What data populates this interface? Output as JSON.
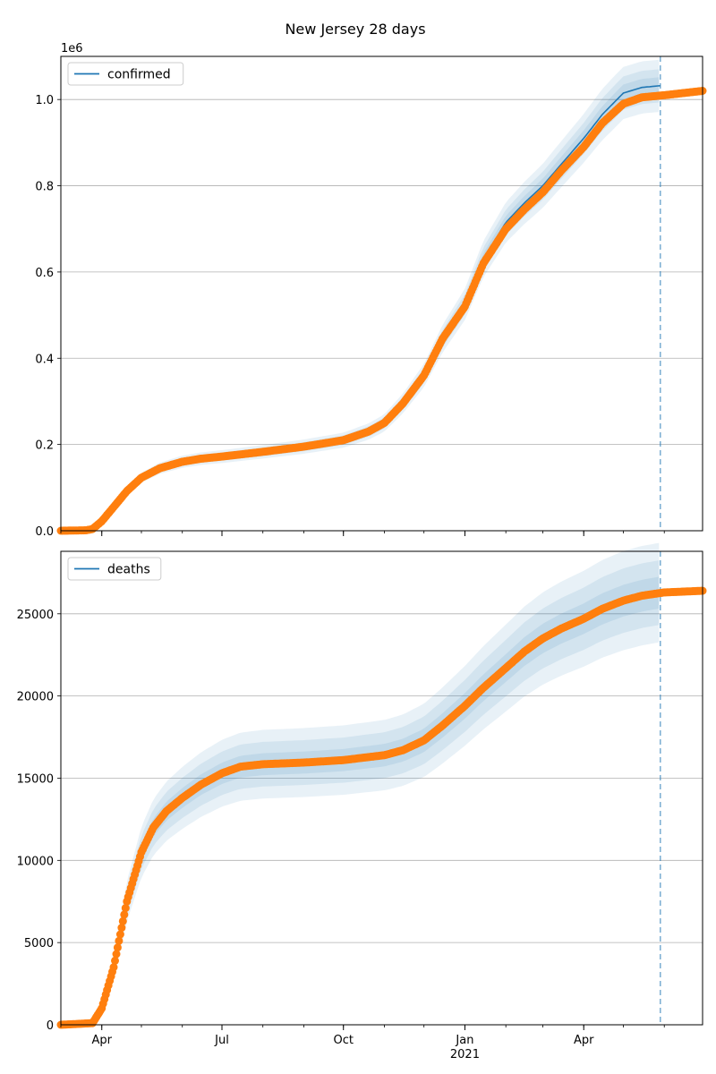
{
  "title": "New Jersey 28 days",
  "colors": {
    "model_line": "#1f77b4",
    "band": "#1f77b4",
    "observed": "#ff7f0e",
    "grid": "#b0b0b0",
    "divider": "#1f77b4"
  },
  "x_axis": {
    "start": "2020-03-01",
    "end": "2021-06-30",
    "forecast_start": "2021-05-29",
    "major_ticks": [
      {
        "date": "2020-04-01",
        "label": "Apr"
      },
      {
        "date": "2020-07-01",
        "label": "Jul"
      },
      {
        "date": "2020-10-01",
        "label": "Oct"
      },
      {
        "date": "2021-01-01",
        "label": "Jan"
      },
      {
        "date": "2021-04-01",
        "label": "Apr"
      }
    ],
    "year_label": {
      "date": "2021-01-01",
      "label": "2021"
    }
  },
  "chart_data": [
    {
      "type": "line",
      "legend": "confirmed",
      "legend_placement": "top-left",
      "grid": "y",
      "ylim": [
        0,
        1100000
      ],
      "offset_label": "1e6",
      "y_ticks": [
        {
          "value": 0,
          "label": "0.0"
        },
        {
          "value": 200000,
          "label": "0.2"
        },
        {
          "value": 400000,
          "label": "0.4"
        },
        {
          "value": 600000,
          "label": "0.6"
        },
        {
          "value": 800000,
          "label": "0.8"
        },
        {
          "value": 1000000,
          "label": "1.0"
        }
      ],
      "observed": [
        [
          "2020-03-01",
          0
        ],
        [
          "2020-03-20",
          1000
        ],
        [
          "2020-03-25",
          4000
        ],
        [
          "2020-04-01",
          22000
        ],
        [
          "2020-04-10",
          55000
        ],
        [
          "2020-04-20",
          92000
        ],
        [
          "2020-05-01",
          123000
        ],
        [
          "2020-05-15",
          145000
        ],
        [
          "2020-06-01",
          160000
        ],
        [
          "2020-06-15",
          167000
        ],
        [
          "2020-07-01",
          172000
        ],
        [
          "2020-08-01",
          183000
        ],
        [
          "2020-09-01",
          195000
        ],
        [
          "2020-10-01",
          210000
        ],
        [
          "2020-10-20",
          230000
        ],
        [
          "2020-11-01",
          250000
        ],
        [
          "2020-11-15",
          295000
        ],
        [
          "2020-12-01",
          360000
        ],
        [
          "2020-12-15",
          445000
        ],
        [
          "2021-01-01",
          520000
        ],
        [
          "2021-01-15",
          620000
        ],
        [
          "2021-02-01",
          700000
        ],
        [
          "2021-02-15",
          745000
        ],
        [
          "2021-03-01",
          785000
        ],
        [
          "2021-03-15",
          835000
        ],
        [
          "2021-04-01",
          890000
        ],
        [
          "2021-04-15",
          945000
        ],
        [
          "2021-05-01",
          990000
        ],
        [
          "2021-05-15",
          1005000
        ],
        [
          "2021-06-01",
          1010000
        ],
        [
          "2021-06-30",
          1020000
        ]
      ],
      "model": [
        [
          "2020-03-01",
          0
        ],
        [
          "2020-03-20",
          1000
        ],
        [
          "2020-03-25",
          4000
        ],
        [
          "2020-04-01",
          22000
        ],
        [
          "2020-04-10",
          55000
        ],
        [
          "2020-04-20",
          92000
        ],
        [
          "2020-05-01",
          123000
        ],
        [
          "2020-05-15",
          145000
        ],
        [
          "2020-06-01",
          160000
        ],
        [
          "2020-06-15",
          167000
        ],
        [
          "2020-07-01",
          172000
        ],
        [
          "2020-08-01",
          183000
        ],
        [
          "2020-09-01",
          195000
        ],
        [
          "2020-10-01",
          210000
        ],
        [
          "2020-10-20",
          230000
        ],
        [
          "2020-11-01",
          250000
        ],
        [
          "2020-11-15",
          295000
        ],
        [
          "2020-12-01",
          360000
        ],
        [
          "2020-12-15",
          445000
        ],
        [
          "2021-01-01",
          525000
        ],
        [
          "2021-01-15",
          630000
        ],
        [
          "2021-02-01",
          715000
        ],
        [
          "2021-02-15",
          760000
        ],
        [
          "2021-03-01",
          800000
        ],
        [
          "2021-03-15",
          850000
        ],
        [
          "2021-04-01",
          910000
        ],
        [
          "2021-04-15",
          965000
        ],
        [
          "2021-05-01",
          1015000
        ],
        [
          "2021-05-15",
          1028000
        ],
        [
          "2021-05-29",
          1032000
        ]
      ]
    },
    {
      "type": "line",
      "legend": "deaths",
      "legend_placement": "top-left",
      "grid": "y",
      "ylim": [
        0,
        28800
      ],
      "y_ticks": [
        {
          "value": 0,
          "label": "0"
        },
        {
          "value": 5000,
          "label": "5000"
        },
        {
          "value": 10000,
          "label": "10000"
        },
        {
          "value": 15000,
          "label": "15000"
        },
        {
          "value": 20000,
          "label": "20000"
        },
        {
          "value": 25000,
          "label": "25000"
        }
      ],
      "observed": [
        [
          "2020-03-01",
          0
        ],
        [
          "2020-03-25",
          100
        ],
        [
          "2020-04-01",
          1000
        ],
        [
          "2020-04-10",
          3500
        ],
        [
          "2020-04-20",
          7500
        ],
        [
          "2020-05-01",
          10500
        ],
        [
          "2020-05-10",
          12000
        ],
        [
          "2020-05-20",
          13000
        ],
        [
          "2020-06-01",
          13800
        ],
        [
          "2020-06-15",
          14600
        ],
        [
          "2020-07-01",
          15300
        ],
        [
          "2020-07-15",
          15700
        ],
        [
          "2020-08-01",
          15850
        ],
        [
          "2020-09-01",
          15950
        ],
        [
          "2020-10-01",
          16100
        ],
        [
          "2020-11-01",
          16400
        ],
        [
          "2020-11-15",
          16700
        ],
        [
          "2020-12-01",
          17300
        ],
        [
          "2020-12-15",
          18200
        ],
        [
          "2021-01-01",
          19400
        ],
        [
          "2021-01-15",
          20500
        ],
        [
          "2021-02-01",
          21700
        ],
        [
          "2021-02-15",
          22700
        ],
        [
          "2021-03-01",
          23500
        ],
        [
          "2021-03-15",
          24100
        ],
        [
          "2021-04-01",
          24700
        ],
        [
          "2021-04-15",
          25300
        ],
        [
          "2021-05-01",
          25800
        ],
        [
          "2021-05-15",
          26100
        ],
        [
          "2021-06-01",
          26300
        ],
        [
          "2021-06-30",
          26400
        ]
      ],
      "model": [
        [
          "2020-03-01",
          0
        ],
        [
          "2020-03-25",
          100
        ],
        [
          "2020-04-01",
          1000
        ],
        [
          "2020-04-10",
          3500
        ],
        [
          "2020-04-20",
          7500
        ],
        [
          "2020-05-01",
          10500
        ],
        [
          "2020-05-10",
          12000
        ],
        [
          "2020-05-20",
          13000
        ],
        [
          "2020-06-01",
          13800
        ],
        [
          "2020-06-15",
          14600
        ],
        [
          "2020-07-01",
          15300
        ],
        [
          "2020-07-15",
          15700
        ],
        [
          "2020-08-01",
          15850
        ],
        [
          "2020-09-01",
          15950
        ],
        [
          "2020-10-01",
          16100
        ],
        [
          "2020-11-01",
          16400
        ],
        [
          "2020-11-15",
          16700
        ],
        [
          "2020-12-01",
          17300
        ],
        [
          "2020-12-15",
          18200
        ],
        [
          "2021-01-01",
          19400
        ],
        [
          "2021-01-15",
          20500
        ],
        [
          "2021-02-01",
          21700
        ],
        [
          "2021-02-15",
          22700
        ],
        [
          "2021-03-01",
          23500
        ],
        [
          "2021-03-15",
          24100
        ],
        [
          "2021-04-01",
          24700
        ],
        [
          "2021-04-15",
          25300
        ],
        [
          "2021-05-01",
          25800
        ],
        [
          "2021-05-15",
          26100
        ],
        [
          "2021-05-29",
          26300
        ]
      ]
    }
  ]
}
